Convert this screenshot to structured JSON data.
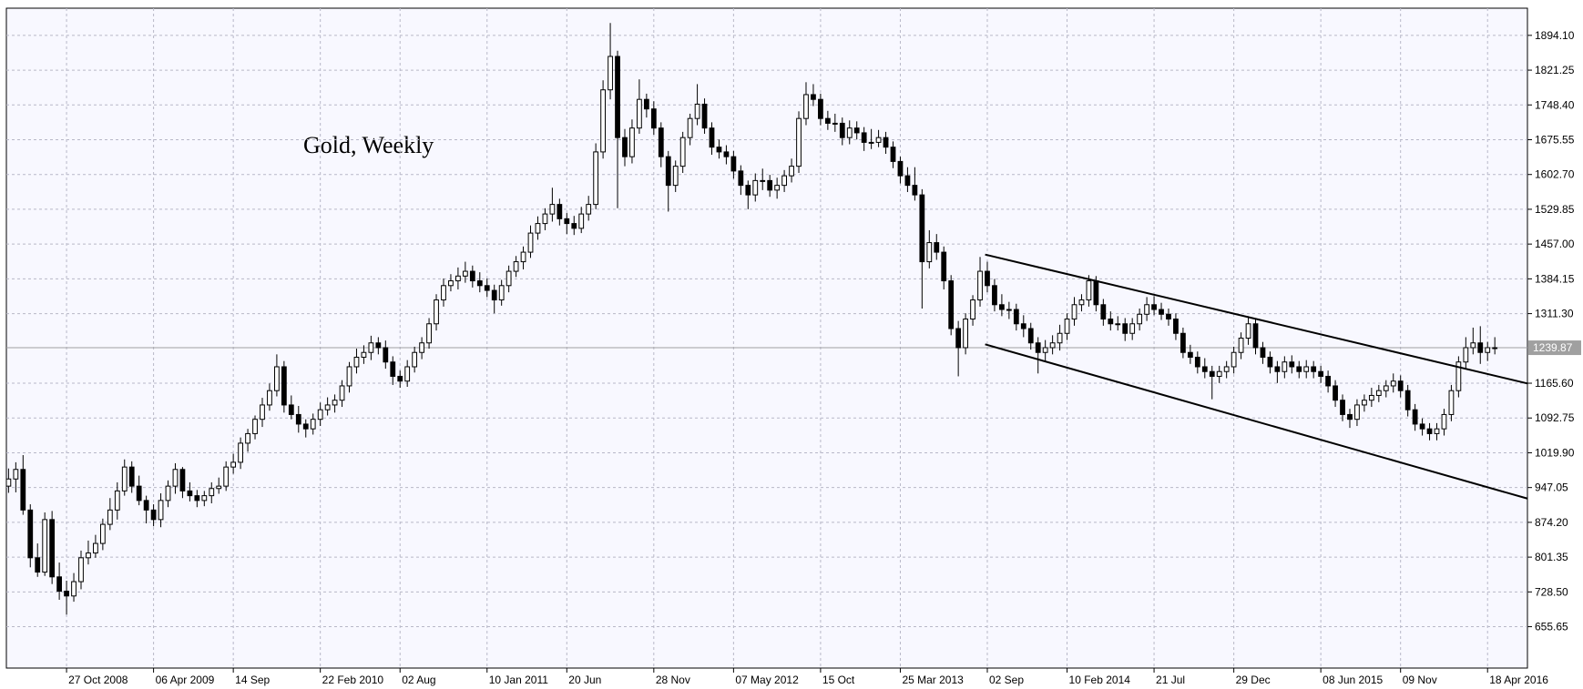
{
  "chart_data": {
    "type": "candlestick",
    "title": "Gold, Weekly",
    "up_color": "#ffffff",
    "down_color": "#000000",
    "grid": true,
    "ylim": [
      569,
      1951
    ],
    "xlim": [
      -0.3,
      209.5
    ],
    "yticks": [
      {
        "value": 1894.1,
        "label": "1894.10"
      },
      1821.25,
      {
        "value": 1748.4,
        "label": "1748.40"
      },
      1675.55,
      {
        "value": 1602.7,
        "label": "1602.70"
      },
      1529.85,
      {
        "value": 1457,
        "label": "1457.00"
      },
      1384.15,
      {
        "value": 1311.3,
        "label": "1311.30"
      },
      {
        "value": 1165.6,
        "label": "1165.60"
      },
      1092.75,
      {
        "value": 1019.9,
        "label": "1019.90"
      },
      947.05,
      {
        "value": 874.2,
        "label": "874.20"
      },
      801.35,
      {
        "value": 728.5,
        "label": "728.50"
      },
      655.65
    ],
    "xticks": [
      {
        "value": 8,
        "label": "27 Oct 2008"
      },
      {
        "value": 20,
        "label": "06 Apr 2009"
      },
      {
        "value": 31,
        "label": "14 Sep"
      },
      {
        "value": 43,
        "label": "22 Feb 2010"
      },
      {
        "value": 54,
        "label": "02 Aug"
      },
      {
        "value": 66,
        "label": "10 Jan 2011"
      },
      {
        "value": 77,
        "label": "20 Jun"
      },
      {
        "value": 89,
        "label": "28 Nov"
      },
      {
        "value": 100,
        "label": "07 May 2012"
      },
      {
        "value": 112,
        "label": "15 Oct"
      },
      {
        "value": 123,
        "label": "25 Mar 2013"
      },
      {
        "value": 135,
        "label": "02 Sep"
      },
      {
        "value": 146,
        "label": "10 Feb 2014"
      },
      {
        "value": 158,
        "label": "21 Jul"
      },
      {
        "value": 169,
        "label": "29 Dec"
      },
      {
        "value": 181,
        "label": "08 Jun 2015"
      },
      {
        "value": 192,
        "label": "09 Nov"
      },
      {
        "value": 204,
        "label": "18 Apr 2016"
      }
    ],
    "last_price": 1239.87,
    "trendlines": [
      {
        "x": [
          134.7,
          209.5
        ],
        "y": [
          1435,
          1165
        ]
      },
      {
        "x": [
          134.7,
          209.5
        ],
        "y": [
          1247,
          924
        ]
      }
    ],
    "ohlc": [
      [
        950,
        987,
        936,
        965
      ],
      [
        965,
        1000,
        937,
        985
      ],
      [
        985,
        1015,
        890,
        900
      ],
      [
        900,
        912,
        780,
        800
      ],
      [
        800,
        830,
        760,
        770
      ],
      [
        770,
        895,
        762,
        880
      ],
      [
        880,
        898,
        745,
        760
      ],
      [
        760,
        790,
        712,
        730
      ],
      [
        730,
        752,
        681,
        720
      ],
      [
        720,
        768,
        708,
        750
      ],
      [
        750,
        815,
        734,
        800
      ],
      [
        800,
        836,
        786,
        810
      ],
      [
        810,
        848,
        800,
        830
      ],
      [
        830,
        882,
        816,
        870
      ],
      [
        870,
        925,
        858,
        900
      ],
      [
        900,
        958,
        880,
        940
      ],
      [
        940,
        1006,
        930,
        990
      ],
      [
        990,
        1002,
        936,
        950
      ],
      [
        950,
        972,
        910,
        920
      ],
      [
        920,
        930,
        872,
        900
      ],
      [
        900,
        912,
        866,
        880
      ],
      [
        880,
        935,
        864,
        920
      ],
      [
        920,
        962,
        906,
        950
      ],
      [
        950,
        998,
        934,
        985
      ],
      [
        985,
        990,
        925,
        940
      ],
      [
        940,
        958,
        918,
        930
      ],
      [
        930,
        942,
        906,
        920
      ],
      [
        920,
        940,
        908,
        930
      ],
      [
        930,
        958,
        914,
        945
      ],
      [
        945,
        968,
        934,
        950
      ],
      [
        950,
        1002,
        940,
        990
      ],
      [
        990,
        1018,
        976,
        1000
      ],
      [
        1000,
        1052,
        986,
        1040
      ],
      [
        1040,
        1070,
        1022,
        1060
      ],
      [
        1060,
        1098,
        1048,
        1090
      ],
      [
        1090,
        1135,
        1074,
        1120
      ],
      [
        1120,
        1165,
        1108,
        1150
      ],
      [
        1150,
        1226,
        1138,
        1200
      ],
      [
        1200,
        1212,
        1104,
        1120
      ],
      [
        1120,
        1140,
        1090,
        1100
      ],
      [
        1100,
        1118,
        1062,
        1080
      ],
      [
        1080,
        1090,
        1052,
        1070
      ],
      [
        1070,
        1102,
        1058,
        1090
      ],
      [
        1090,
        1125,
        1076,
        1110
      ],
      [
        1110,
        1136,
        1098,
        1120
      ],
      [
        1120,
        1142,
        1104,
        1130
      ],
      [
        1130,
        1172,
        1116,
        1160
      ],
      [
        1160,
        1210,
        1146,
        1200
      ],
      [
        1200,
        1238,
        1186,
        1220
      ],
      [
        1220,
        1245,
        1206,
        1230
      ],
      [
        1230,
        1265,
        1214,
        1250
      ],
      [
        1250,
        1262,
        1226,
        1240
      ],
      [
        1240,
        1255,
        1196,
        1210
      ],
      [
        1210,
        1222,
        1162,
        1180
      ],
      [
        1180,
        1192,
        1156,
        1170
      ],
      [
        1170,
        1214,
        1158,
        1200
      ],
      [
        1200,
        1242,
        1188,
        1230
      ],
      [
        1230,
        1262,
        1216,
        1250
      ],
      [
        1250,
        1302,
        1238,
        1290
      ],
      [
        1290,
        1352,
        1276,
        1340
      ],
      [
        1340,
        1385,
        1326,
        1370
      ],
      [
        1370,
        1394,
        1358,
        1380
      ],
      [
        1380,
        1408,
        1362,
        1390
      ],
      [
        1390,
        1420,
        1376,
        1400
      ],
      [
        1400,
        1412,
        1366,
        1380
      ],
      [
        1380,
        1398,
        1356,
        1370
      ],
      [
        1370,
        1385,
        1346,
        1360
      ],
      [
        1360,
        1372,
        1312,
        1340
      ],
      [
        1340,
        1382,
        1328,
        1370
      ],
      [
        1370,
        1412,
        1356,
        1400
      ],
      [
        1400,
        1432,
        1388,
        1420
      ],
      [
        1420,
        1452,
        1404,
        1440
      ],
      [
        1440,
        1496,
        1428,
        1480
      ],
      [
        1480,
        1515,
        1466,
        1500
      ],
      [
        1500,
        1532,
        1486,
        1520
      ],
      [
        1520,
        1575,
        1504,
        1540
      ],
      [
        1540,
        1552,
        1496,
        1510
      ],
      [
        1510,
        1522,
        1478,
        1500
      ],
      [
        1500,
        1516,
        1476,
        1490
      ],
      [
        1490,
        1535,
        1480,
        1520
      ],
      [
        1520,
        1558,
        1506,
        1540
      ],
      [
        1540,
        1668,
        1530,
        1650
      ],
      [
        1650,
        1800,
        1636,
        1780
      ],
      [
        1780,
        1920,
        1760,
        1850
      ],
      [
        1850,
        1862,
        1532,
        1680
      ],
      [
        1680,
        1698,
        1620,
        1640
      ],
      [
        1640,
        1718,
        1626,
        1700
      ],
      [
        1700,
        1802,
        1688,
        1760
      ],
      [
        1760,
        1772,
        1722,
        1740
      ],
      [
        1740,
        1756,
        1686,
        1700
      ],
      [
        1700,
        1712,
        1618,
        1640
      ],
      [
        1640,
        1652,
        1525,
        1580
      ],
      [
        1580,
        1632,
        1566,
        1620
      ],
      [
        1620,
        1692,
        1606,
        1680
      ],
      [
        1680,
        1730,
        1664,
        1720
      ],
      [
        1720,
        1792,
        1706,
        1750
      ],
      [
        1750,
        1762,
        1688,
        1700
      ],
      [
        1700,
        1712,
        1644,
        1660
      ],
      [
        1660,
        1676,
        1636,
        1650
      ],
      [
        1650,
        1664,
        1624,
        1640
      ],
      [
        1640,
        1652,
        1594,
        1610
      ],
      [
        1610,
        1622,
        1560,
        1580
      ],
      [
        1580,
        1590,
        1530,
        1560
      ],
      [
        1560,
        1605,
        1546,
        1590
      ],
      [
        1590,
        1615,
        1570,
        1590
      ],
      [
        1590,
        1602,
        1556,
        1570
      ],
      [
        1570,
        1596,
        1552,
        1580
      ],
      [
        1580,
        1612,
        1566,
        1600
      ],
      [
        1600,
        1636,
        1586,
        1620
      ],
      [
        1620,
        1735,
        1606,
        1720
      ],
      [
        1720,
        1796,
        1706,
        1770
      ],
      [
        1770,
        1792,
        1746,
        1760
      ],
      [
        1760,
        1772,
        1706,
        1720
      ],
      [
        1720,
        1736,
        1696,
        1710
      ],
      [
        1710,
        1730,
        1692,
        1710
      ],
      [
        1710,
        1722,
        1664,
        1680
      ],
      [
        1680,
        1716,
        1666,
        1700
      ],
      [
        1700,
        1714,
        1676,
        1690
      ],
      [
        1690,
        1702,
        1652,
        1670
      ],
      [
        1670,
        1698,
        1656,
        1670
      ],
      [
        1670,
        1696,
        1660,
        1680
      ],
      [
        1680,
        1692,
        1646,
        1660
      ],
      [
        1660,
        1672,
        1616,
        1630
      ],
      [
        1630,
        1640,
        1584,
        1600
      ],
      [
        1600,
        1618,
        1566,
        1580
      ],
      [
        1580,
        1618,
        1548,
        1560
      ],
      [
        1560,
        1572,
        1322,
        1420
      ],
      [
        1420,
        1486,
        1406,
        1460
      ],
      [
        1460,
        1478,
        1424,
        1440
      ],
      [
        1440,
        1452,
        1362,
        1380
      ],
      [
        1380,
        1392,
        1266,
        1280
      ],
      [
        1280,
        1296,
        1180,
        1240
      ],
      [
        1240,
        1312,
        1226,
        1300
      ],
      [
        1300,
        1350,
        1286,
        1340
      ],
      [
        1340,
        1430,
        1326,
        1400
      ],
      [
        1400,
        1420,
        1356,
        1370
      ],
      [
        1370,
        1384,
        1316,
        1330
      ],
      [
        1330,
        1352,
        1306,
        1320
      ],
      [
        1320,
        1336,
        1300,
        1320
      ],
      [
        1320,
        1332,
        1276,
        1290
      ],
      [
        1290,
        1308,
        1262,
        1280
      ],
      [
        1280,
        1292,
        1236,
        1250
      ],
      [
        1250,
        1262,
        1186,
        1230
      ],
      [
        1230,
        1256,
        1210,
        1240
      ],
      [
        1240,
        1266,
        1226,
        1250
      ],
      [
        1250,
        1288,
        1234,
        1270
      ],
      [
        1270,
        1312,
        1256,
        1300
      ],
      [
        1300,
        1346,
        1286,
        1330
      ],
      [
        1330,
        1352,
        1316,
        1340
      ],
      [
        1340,
        1392,
        1326,
        1380
      ],
      [
        1380,
        1390,
        1316,
        1330
      ],
      [
        1330,
        1342,
        1286,
        1300
      ],
      [
        1300,
        1316,
        1276,
        1290
      ],
      [
        1290,
        1306,
        1276,
        1290
      ],
      [
        1290,
        1302,
        1254,
        1270
      ],
      [
        1270,
        1302,
        1256,
        1290
      ],
      [
        1290,
        1322,
        1276,
        1310
      ],
      [
        1310,
        1346,
        1296,
        1330
      ],
      [
        1330,
        1348,
        1308,
        1320
      ],
      [
        1320,
        1334,
        1298,
        1310
      ],
      [
        1310,
        1322,
        1286,
        1300
      ],
      [
        1300,
        1312,
        1256,
        1270
      ],
      [
        1270,
        1282,
        1218,
        1230
      ],
      [
        1230,
        1246,
        1206,
        1220
      ],
      [
        1220,
        1232,
        1186,
        1200
      ],
      [
        1200,
        1218,
        1176,
        1190
      ],
      [
        1190,
        1202,
        1132,
        1180
      ],
      [
        1180,
        1202,
        1166,
        1190
      ],
      [
        1190,
        1212,
        1176,
        1200
      ],
      [
        1200,
        1242,
        1186,
        1230
      ],
      [
        1230,
        1272,
        1216,
        1260
      ],
      [
        1260,
        1306,
        1246,
        1290
      ],
      [
        1290,
        1300,
        1226,
        1240
      ],
      [
        1240,
        1252,
        1206,
        1220
      ],
      [
        1220,
        1232,
        1186,
        1200
      ],
      [
        1200,
        1212,
        1166,
        1190
      ],
      [
        1190,
        1222,
        1176,
        1210
      ],
      [
        1210,
        1224,
        1186,
        1200
      ],
      [
        1200,
        1212,
        1176,
        1190
      ],
      [
        1190,
        1214,
        1176,
        1200
      ],
      [
        1200,
        1212,
        1176,
        1190
      ],
      [
        1190,
        1202,
        1166,
        1180
      ],
      [
        1180,
        1192,
        1146,
        1160
      ],
      [
        1160,
        1172,
        1116,
        1130
      ],
      [
        1130,
        1142,
        1086,
        1100
      ],
      [
        1100,
        1112,
        1072,
        1090
      ],
      [
        1090,
        1132,
        1076,
        1120
      ],
      [
        1120,
        1142,
        1106,
        1130
      ],
      [
        1130,
        1156,
        1116,
        1140
      ],
      [
        1140,
        1162,
        1126,
        1150
      ],
      [
        1150,
        1172,
        1136,
        1160
      ],
      [
        1160,
        1186,
        1146,
        1170
      ],
      [
        1170,
        1182,
        1136,
        1150
      ],
      [
        1150,
        1162,
        1096,
        1110
      ],
      [
        1110,
        1122,
        1066,
        1080
      ],
      [
        1080,
        1092,
        1056,
        1070
      ],
      [
        1070,
        1082,
        1046,
        1060
      ],
      [
        1060,
        1082,
        1046,
        1070
      ],
      [
        1070,
        1112,
        1056,
        1100
      ],
      [
        1100,
        1162,
        1086,
        1150
      ],
      [
        1150,
        1222,
        1136,
        1210
      ],
      [
        1210,
        1262,
        1196,
        1240
      ],
      [
        1240,
        1282,
        1226,
        1250
      ],
      [
        1250,
        1285,
        1206,
        1230
      ],
      [
        1230,
        1252,
        1212,
        1240
      ],
      [
        1240,
        1262,
        1226,
        1240
      ]
    ]
  }
}
